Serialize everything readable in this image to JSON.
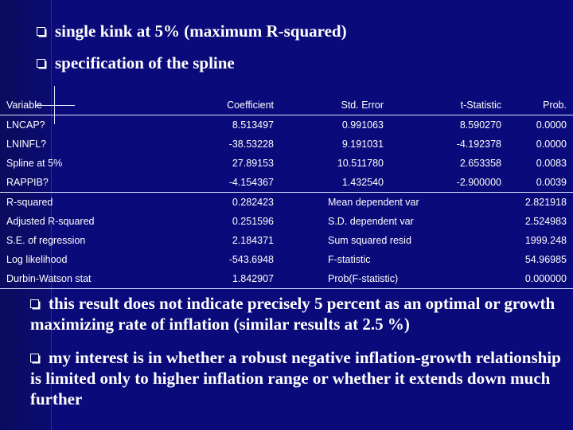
{
  "bullets_top": [
    "single kink at 5% (maximum R-squared)",
    "specification of the spline"
  ],
  "table": {
    "headers": [
      "Variable",
      "Coefficient",
      "Std. Error",
      "t-Statistic",
      "Prob."
    ],
    "rows": [
      [
        "LNCAP?",
        "8.513497",
        "0.991063",
        "8.590270",
        "0.0000"
      ],
      [
        "LNINFL?",
        "-38.53228",
        "9.191031",
        "-4.192378",
        "0.0000"
      ],
      [
        "Spline at 5%",
        "27.89153",
        "10.511780",
        "2.653358",
        "0.0083"
      ],
      [
        "RAPPIB?",
        "-4.154367",
        "1.432540",
        "-2.900000",
        "0.0039"
      ]
    ],
    "stats": [
      [
        "R-squared",
        "0.282423",
        "Mean dependent var",
        "2.821918"
      ],
      [
        "Adjusted R-squared",
        "0.251596",
        "S.D. dependent var",
        "2.524983"
      ],
      [
        "S.E. of regression",
        "2.184371",
        "Sum squared resid",
        "1999.248"
      ],
      [
        "Log likelihood",
        "-543.6948",
        "F-statistic",
        "54.96985"
      ],
      [
        "Durbin-Watson stat",
        "1.842907",
        "Prob(F-statistic)",
        "0.000000"
      ]
    ]
  },
  "bullets_bottom": [
    "this result does not indicate precisely 5 percent as an optimal or growth maximizing rate of inflation (similar results at 2.5 %)",
    "my interest is in whether a robust negative inflation-growth relationship is limited only to higher inflation range or whether it extends down much further"
  ]
}
